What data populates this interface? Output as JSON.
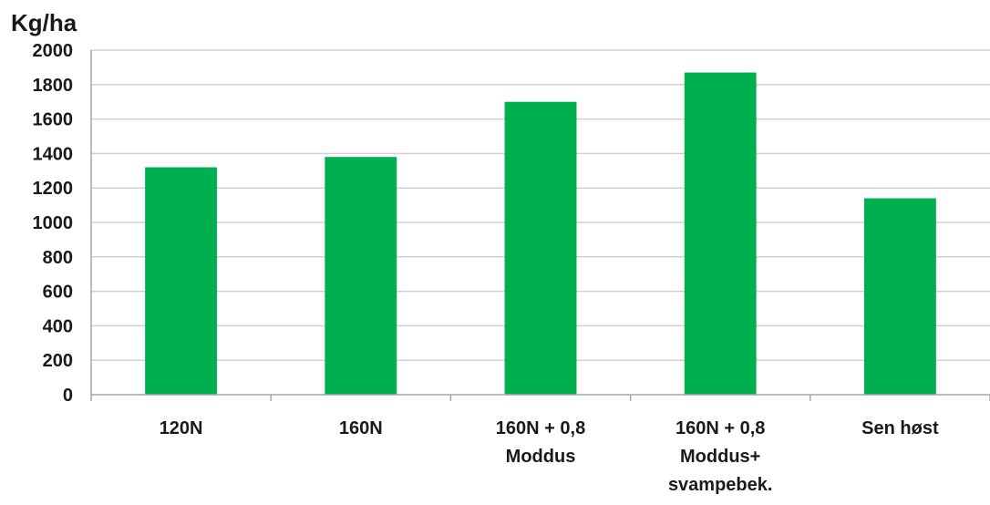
{
  "chart_data": {
    "type": "bar",
    "ylabel": "Kg/ha",
    "categories": [
      [
        "120N"
      ],
      [
        "160N"
      ],
      [
        "160N + 0,8",
        "Moddus"
      ],
      [
        "160N + 0,8",
        "Moddus+",
        "svampebek."
      ],
      [
        "Sen høst"
      ]
    ],
    "values": [
      1320,
      1380,
      1700,
      1870,
      1140
    ],
    "ylim": [
      0,
      2000
    ],
    "yticks": [
      "0",
      "200",
      "400",
      "600",
      "800",
      "1000",
      "1200",
      "1400",
      "1600",
      "1800",
      "2000"
    ],
    "grid": true,
    "legend": "none",
    "colors": {
      "bar": "#00b050",
      "grid": "#d0d0d0",
      "axis": "#a6a6a6"
    }
  }
}
